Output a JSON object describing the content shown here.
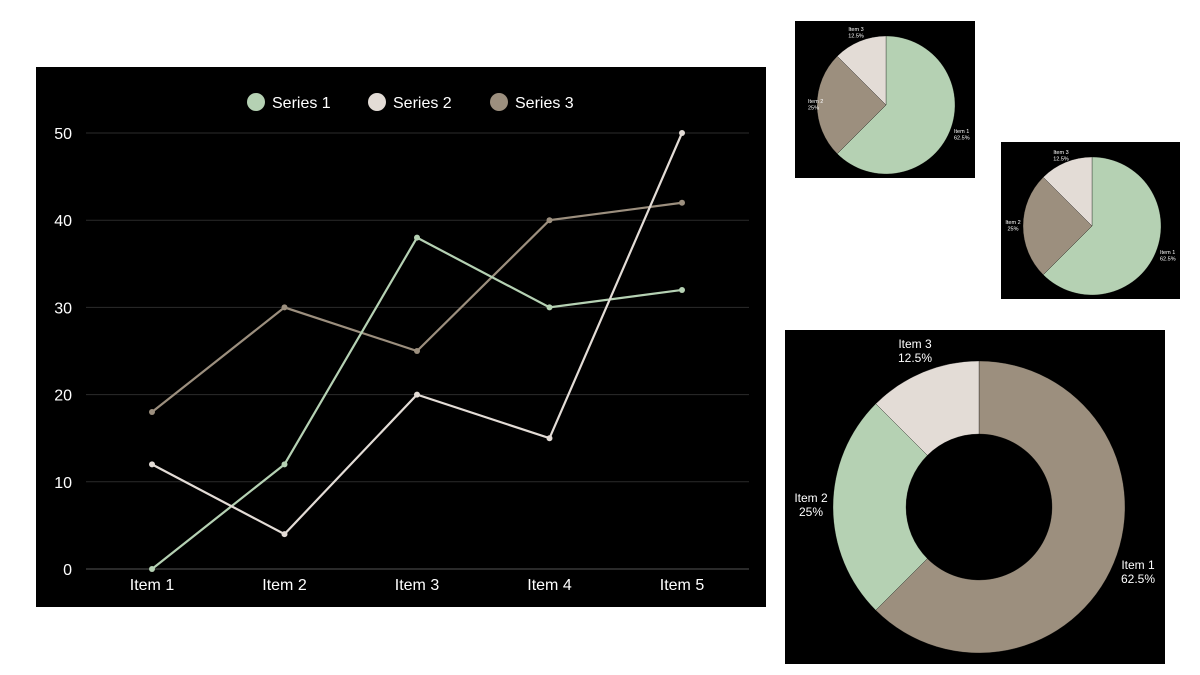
{
  "colors": {
    "panel_background": "#000000",
    "grid": "#2b2b2b",
    "series": [
      "#b5d1b3",
      "#e3dcd6",
      "#9c8f7e"
    ],
    "text": "#ffffff"
  },
  "chart_data": [
    {
      "type": "line",
      "categories": [
        "Item 1",
        "Item 2",
        "Item 3",
        "Item 4",
        "Item 5"
      ],
      "series": [
        {
          "name": "Series 1",
          "values": [
            0,
            12,
            38,
            30,
            32
          ]
        },
        {
          "name": "Series 2",
          "values": [
            12,
            4,
            20,
            15,
            50
          ]
        },
        {
          "name": "Series 3",
          "values": [
            18,
            30,
            25,
            40,
            42
          ]
        }
      ],
      "ylim": [
        0,
        50
      ],
      "yticks": [
        0,
        10,
        20,
        30,
        40,
        50
      ],
      "grid": true,
      "legend": "top-center"
    },
    {
      "type": "pie",
      "labels": [
        "Item 1",
        "Item 2",
        "Item 3"
      ],
      "values": [
        62.5,
        25,
        12.5
      ],
      "value_labels": [
        "62.5%",
        "25%",
        "12.5%"
      ],
      "colors": [
        "#b5d1b3",
        "#9c8f7e",
        "#e3dcd6"
      ]
    },
    {
      "type": "pie",
      "labels": [
        "Item 1",
        "Item 2",
        "Item 3"
      ],
      "values": [
        62.5,
        25,
        12.5
      ],
      "value_labels": [
        "62.5%",
        "25%",
        "12.5%"
      ],
      "colors": [
        "#b5d1b3",
        "#9c8f7e",
        "#e3dcd6"
      ]
    },
    {
      "type": "donut",
      "labels": [
        "Item 1",
        "Item 2",
        "Item 3"
      ],
      "values": [
        62.5,
        25,
        12.5
      ],
      "value_labels": [
        "62.5%",
        "25%",
        "12.5%"
      ],
      "colors": [
        "#9c8f7e",
        "#b5d1b3",
        "#e3dcd6"
      ]
    }
  ]
}
